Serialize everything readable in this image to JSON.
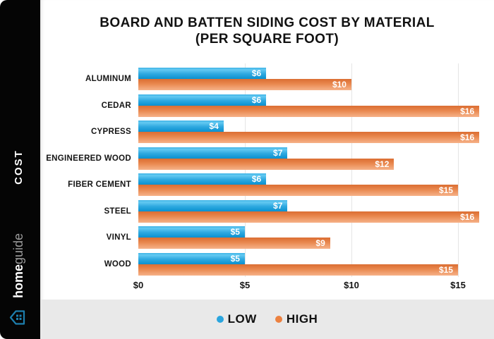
{
  "sidebar": {
    "cost_label": "COST",
    "brand_bold": "home",
    "brand_light": "guide"
  },
  "title": {
    "line1": "BOARD AND BATTEN SIDING COST BY MATERIAL",
    "line2": "(PER SQUARE FOOT)"
  },
  "legend": {
    "items": [
      {
        "label": "LOW",
        "color": "#2aa5de"
      },
      {
        "label": "HIGH",
        "color": "#ec8140"
      }
    ]
  },
  "colors": {
    "low_bar_top": "#3cb2e5",
    "low_bar_bottom": "#0b90cf",
    "high_bar_top": "#db6e33",
    "high_bar_bottom": "#f6b289",
    "sidebar_bg": "#050505",
    "legend_strip_bg": "#e9e9e9",
    "gridline": "#e5e5e5"
  },
  "chart_data": {
    "type": "bar",
    "orientation": "horizontal",
    "title": "BOARD AND BATTEN SIDING COST BY MATERIAL (PER SQUARE FOOT)",
    "categories": [
      "ALUMINUM",
      "CEDAR",
      "CYPRESS",
      "ENGINEERED WOOD",
      "FIBER CEMENT",
      "STEEL",
      "VINYL",
      "WOOD"
    ],
    "series": [
      {
        "name": "LOW",
        "values": [
          6,
          6,
          4,
          7,
          6,
          7,
          5,
          5
        ],
        "labels": [
          "$6",
          "$6",
          "$4",
          "$7",
          "$6",
          "$7",
          "$5",
          "$5"
        ]
      },
      {
        "name": "HIGH",
        "values": [
          10,
          16,
          16,
          12,
          15,
          16,
          9,
          15
        ],
        "labels": [
          "$10",
          "$16",
          "$16",
          "$12",
          "$15",
          "$16",
          "$9",
          "$15"
        ]
      }
    ],
    "xticks": [
      {
        "v": 0,
        "label": "$0"
      },
      {
        "v": 5,
        "label": "$5"
      },
      {
        "v": 10,
        "label": "$10"
      },
      {
        "v": 15,
        "label": "$15"
      }
    ],
    "gridline_values": [
      5,
      10,
      15
    ],
    "xmax": 16.16,
    "grid": "vertical-only",
    "legend_position": "bottom"
  }
}
